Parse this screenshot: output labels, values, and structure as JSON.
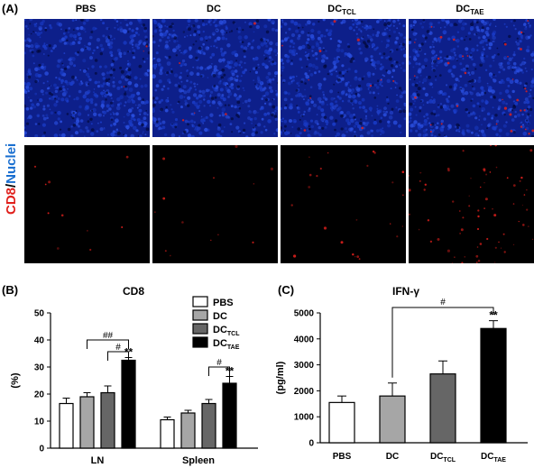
{
  "panel_a": {
    "letter": "(A)",
    "columns": [
      {
        "main": "PBS",
        "sub": ""
      },
      {
        "main": "DC",
        "sub": ""
      },
      {
        "main": "DC",
        "sub": "TCL"
      },
      {
        "main": "DC",
        "sub": "TAE"
      }
    ],
    "side_label": {
      "cd8": "CD8",
      "slash": "/",
      "nuclei": "Nuclei"
    },
    "colors": {
      "nuclei": "#1a3cc8",
      "cd8": "#e0201c",
      "background_top": "#0d1f8a",
      "background_bottom": "#000000"
    },
    "cd8_density": [
      0.05,
      0.08,
      0.18,
      0.6
    ]
  },
  "panel_b": {
    "letter": "(B)",
    "chart_data": {
      "type": "bar",
      "title": "CD8",
      "ylabel": "(%)",
      "ylim": [
        0,
        50
      ],
      "yticks": [
        "0",
        "10",
        "20",
        "30",
        "40",
        "50"
      ],
      "categories": [
        "LN",
        "Spleen"
      ],
      "series": [
        {
          "name": "PBS",
          "name_sub": "",
          "values": [
            16.5,
            10.5
          ],
          "errors": [
            2.0,
            1.0
          ],
          "color": "#ffffff"
        },
        {
          "name": "DC",
          "name_sub": "",
          "values": [
            19.0,
            13.0
          ],
          "errors": [
            1.5,
            1.0
          ],
          "color": "#a6a6a6"
        },
        {
          "name": "DC",
          "name_sub": "TCL",
          "values": [
            20.5,
            16.5
          ],
          "errors": [
            2.5,
            1.5
          ],
          "color": "#666666"
        },
        {
          "name": "DC",
          "name_sub": "TAE",
          "values": [
            32.5,
            24.0
          ],
          "errors": [
            1.0,
            2.5
          ],
          "color": "#000000"
        }
      ],
      "significance": [
        {
          "label": "##",
          "category": "LN",
          "from_series": 1,
          "to_series": 3
        },
        {
          "label": "#",
          "category": "LN",
          "from_series": 2,
          "to_series": 3
        },
        {
          "label": "**",
          "category": "LN",
          "series": 3
        },
        {
          "label": "#",
          "category": "Spleen",
          "from_series": 2,
          "to_series": 3
        },
        {
          "label": "**",
          "category": "Spleen",
          "series": 3
        }
      ],
      "legend_position": "top-right"
    }
  },
  "panel_c": {
    "letter": "(C)",
    "chart_data": {
      "type": "bar",
      "title": "IFN-γ",
      "ylabel": "(pg/ml)",
      "ylim": [
        0,
        5000
      ],
      "yticks": [
        "0",
        "1000",
        "2000",
        "3000",
        "4000",
        "5000"
      ],
      "categories": [
        {
          "main": "PBS",
          "sub": ""
        },
        {
          "main": "DC",
          "sub": ""
        },
        {
          "main": "DC",
          "sub": "TCL"
        },
        {
          "main": "DC",
          "sub": "TAE"
        }
      ],
      "values": [
        1550,
        1800,
        2650,
        4400
      ],
      "errors": [
        250,
        500,
        500,
        300
      ],
      "colors": [
        "#ffffff",
        "#a6a6a6",
        "#666666",
        "#000000"
      ],
      "significance": [
        {
          "label": "#",
          "from": 1,
          "to": 3
        },
        {
          "label": "**",
          "index": 3
        }
      ]
    }
  }
}
